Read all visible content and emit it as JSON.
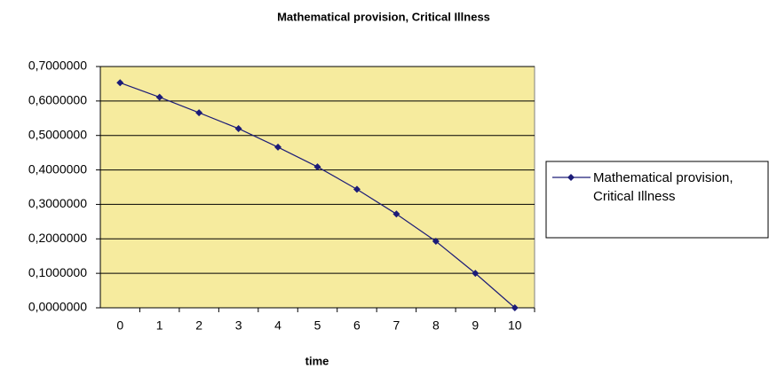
{
  "chart_data": {
    "type": "line",
    "title": "Mathematical provision, Critical Illness",
    "x_label": "time",
    "categories": [
      "0",
      "1",
      "2",
      "3",
      "4",
      "5",
      "6",
      "7",
      "8",
      "9",
      "10"
    ],
    "series": [
      {
        "name": "Mathematical provision, Critical Illness",
        "color": "#1c1c78",
        "values": [
          0.653,
          0.611,
          0.566,
          0.52,
          0.466,
          0.409,
          0.344,
          0.272,
          0.193,
          0.1,
          0.0
        ]
      }
    ],
    "ylim": [
      0,
      0.7
    ],
    "yticks": [
      {
        "value": 0,
        "label": "0,0000000"
      },
      {
        "value": 0.1,
        "label": "0,1000000"
      },
      {
        "value": 0.2,
        "label": "0,2000000"
      },
      {
        "value": 0.3,
        "label": "0,3000000"
      },
      {
        "value": 0.4,
        "label": "0,4000000"
      },
      {
        "value": 0.5,
        "label": "0,5000000"
      },
      {
        "value": 0.6,
        "label": "0,6000000"
      },
      {
        "value": 0.7,
        "label": "0,7000000"
      }
    ],
    "grid": true,
    "plot_background": "#f6eb9e",
    "legend": "right"
  }
}
